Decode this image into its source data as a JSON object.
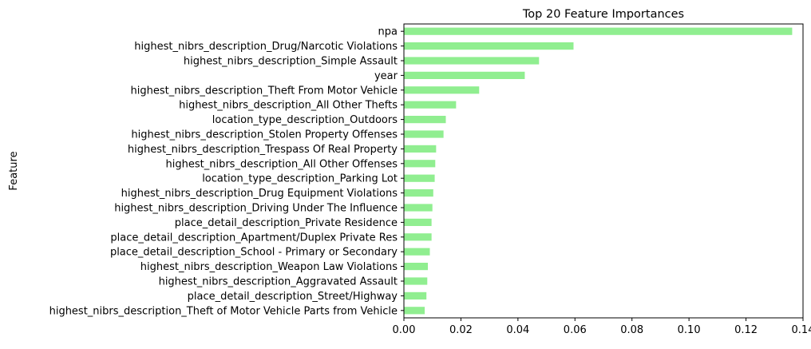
{
  "chart_data": {
    "type": "bar",
    "orientation": "horizontal",
    "title": "Top 20 Feature Importances",
    "xlabel": "",
    "ylabel": "Feature",
    "xlim": [
      0,
      0.14
    ],
    "xticks": [
      "0.00",
      "0.02",
      "0.04",
      "0.06",
      "0.08",
      "0.10",
      "0.12",
      "0.14"
    ],
    "xtick_values": [
      0,
      0.02,
      0.04,
      0.06,
      0.08,
      0.1,
      0.12,
      0.14
    ],
    "grid": false,
    "bar_color": "#90ee90",
    "categories": [
      "npa",
      "highest_nibrs_description_Drug/Narcotic Violations",
      "highest_nibrs_description_Simple Assault",
      "year",
      "highest_nibrs_description_Theft From Motor Vehicle",
      "highest_nibrs_description_All Other Thefts",
      "location_type_description_Outdoors",
      "highest_nibrs_description_Stolen Property Offenses",
      "highest_nibrs_description_Trespass Of Real Property",
      "highest_nibrs_description_All Other Offenses",
      "location_type_description_Parking Lot",
      "highest_nibrs_description_Drug Equipment Violations",
      "highest_nibrs_description_Driving Under The Influence",
      "place_detail_description_Private Residence",
      "place_detail_description_Apartment/Duplex Private Res",
      "place_detail_description_School - Primary or Secondary",
      "highest_nibrs_description_Weapon Law Violations",
      "highest_nibrs_description_Aggravated Assault",
      "place_detail_description_Street/Highway",
      "highest_nibrs_description_Theft of Motor Vehicle Parts from Vehicle"
    ],
    "values": [
      0.1362,
      0.0595,
      0.0474,
      0.0424,
      0.0264,
      0.0183,
      0.0147,
      0.0139,
      0.0113,
      0.011,
      0.0108,
      0.0103,
      0.01,
      0.0097,
      0.0097,
      0.0091,
      0.0084,
      0.0082,
      0.0079,
      0.0073
    ]
  }
}
